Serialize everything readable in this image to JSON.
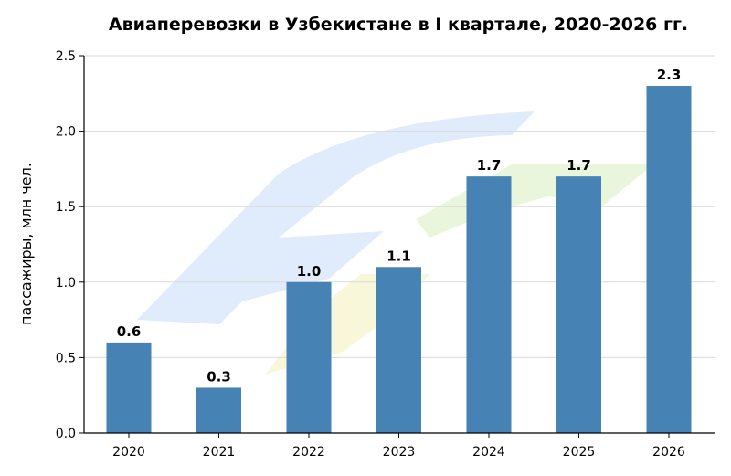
{
  "chart_data": {
    "type": "bar",
    "title": "Авиаперевозки в Узбекистане в I квартале, 2020-2026 гг.",
    "xlabel": "",
    "ylabel": "пассажиры, млн чел.",
    "categories": [
      "2020",
      "2021",
      "2022",
      "2023",
      "2024",
      "2025",
      "2026"
    ],
    "values": [
      0.6,
      0.3,
      1.0,
      1.1,
      1.7,
      1.7,
      2.3
    ],
    "data_labels": [
      "0.6",
      "0.3",
      "1.0",
      "1.1",
      "1.7",
      "1.7",
      "2.3"
    ],
    "ylim": [
      0,
      2.5
    ],
    "yticks": [
      "0.0",
      "0.5",
      "1.0",
      "1.5",
      "2.0",
      "2.5"
    ],
    "grid": "horizontal",
    "bar_color": "#4682b4",
    "watermark_colors": [
      "#dbe9fb",
      "#e6f5d6",
      "#f8f6d3"
    ]
  }
}
